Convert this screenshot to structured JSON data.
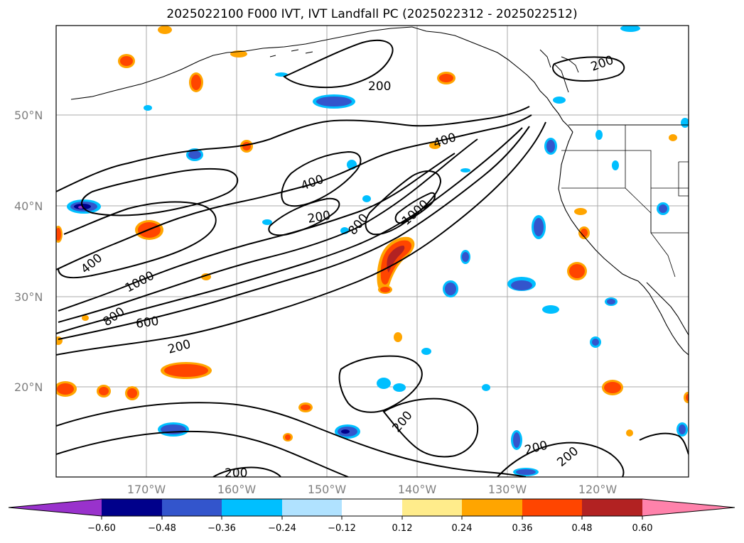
{
  "title": "2025022100 F000 IVT, IVT Landfall PC (2025022312 - 2025022512)",
  "map": {
    "lat_labels": [
      "50°N",
      "40°N",
      "30°N",
      "20°N"
    ],
    "lon_labels": [
      "170°W",
      "160°W",
      "150°W",
      "140°W",
      "130°W",
      "120°W"
    ],
    "contour_labels": [
      "200",
      "200",
      "400",
      "400",
      "200",
      "800",
      "1000",
      "400",
      "1000",
      "800",
      "600",
      "200",
      "200",
      "200",
      "200",
      "200"
    ],
    "colors": {
      "contour": "#000000",
      "gridline": "#aaaaaa",
      "coast": "#000000"
    }
  },
  "colorbar": {
    "tick_labels": [
      "−0.60",
      "−0.48",
      "−0.36",
      "−0.24",
      "−0.12",
      "0.12",
      "0.24",
      "0.36",
      "0.48",
      "0.60"
    ],
    "colors": [
      "#9932cc",
      "#00008b",
      "#3355cc",
      "#00bfff",
      "#b0e2ff",
      "#ffffff",
      "#ffec8b",
      "#ffa500",
      "#ff4500",
      "#b22222",
      "#ff82ab"
    ]
  }
}
